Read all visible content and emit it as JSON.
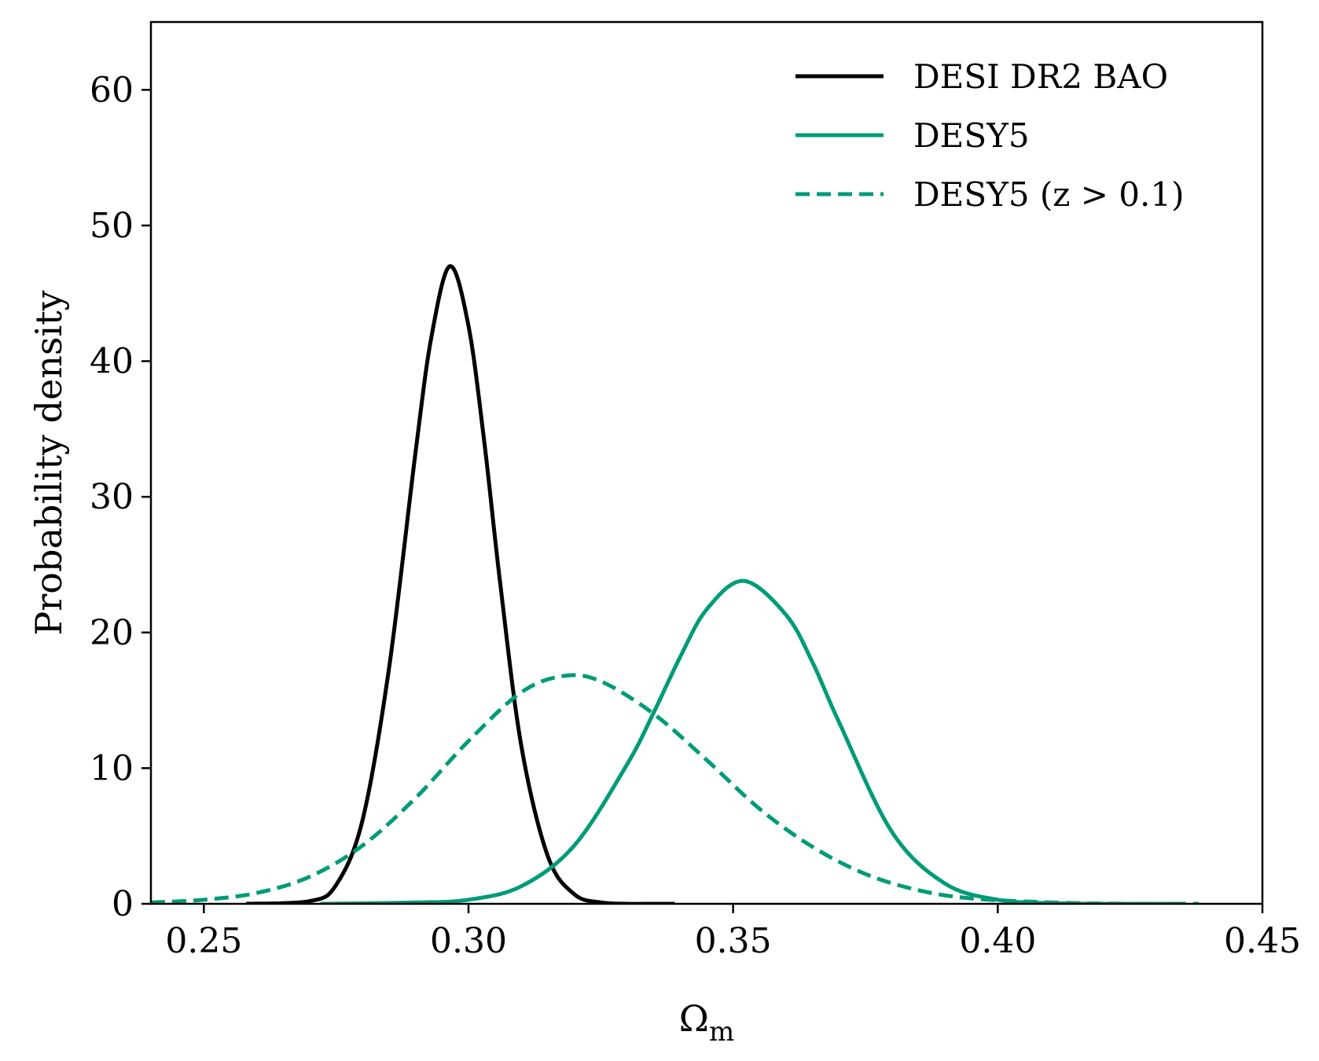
{
  "chart_data": {
    "type": "line",
    "title": "",
    "xlabel": "Ωm",
    "xlabel_main": "Ω",
    "xlabel_sub": "m",
    "ylabel": "Probability density",
    "xlim": [
      0.24,
      0.45
    ],
    "ylim": [
      0,
      65
    ],
    "xticks": [
      0.25,
      0.3,
      0.35,
      0.4,
      0.45
    ],
    "xtick_labels": [
      "0.25",
      "0.30",
      "0.35",
      "0.40",
      "0.45"
    ],
    "yticks": [
      0,
      10,
      20,
      30,
      40,
      50,
      60
    ],
    "ytick_labels": [
      "0",
      "10",
      "20",
      "30",
      "40",
      "50",
      "60"
    ],
    "grid": false,
    "legend_position": "top-right",
    "series": [
      {
        "name": "DESI DR2 BAO",
        "color": "#000000",
        "style": "solid",
        "x": [
          0.258,
          0.27,
          0.275,
          0.28,
          0.285,
          0.29,
          0.293,
          0.2965,
          0.3,
          0.303,
          0.306,
          0.31,
          0.315,
          0.32,
          0.325,
          0.33,
          0.335,
          0.339
        ],
        "y": [
          0.0,
          0.2,
          1.4,
          6.2,
          17.4,
          33.3,
          41.8,
          47.0,
          42.6,
          34.0,
          23.6,
          11.6,
          3.5,
          0.7,
          0.1,
          0.0,
          0.0,
          0.0
        ]
      },
      {
        "name": "DESY5",
        "color": "#009B77",
        "style": "solid",
        "x": [
          0.272,
          0.29,
          0.3,
          0.31,
          0.32,
          0.33,
          0.335,
          0.34,
          0.345,
          0.352,
          0.36,
          0.365,
          0.37,
          0.38,
          0.39,
          0.4,
          0.41,
          0.42,
          0.435
        ],
        "y": [
          0.0,
          0.1,
          0.3,
          1.3,
          4.3,
          10.3,
          14.1,
          18.2,
          21.7,
          23.8,
          21.3,
          17.8,
          13.4,
          5.3,
          1.5,
          0.3,
          0.05,
          0.0,
          0.0
        ]
      },
      {
        "name": "DESY5 (z > 0.1)",
        "color": "#009B77",
        "style": "dashed",
        "x": [
          0.24,
          0.25,
          0.26,
          0.27,
          0.28,
          0.29,
          0.3,
          0.31,
          0.318,
          0.325,
          0.335,
          0.345,
          0.355,
          0.365,
          0.375,
          0.385,
          0.395,
          0.41,
          0.425,
          0.438
        ],
        "y": [
          0.1,
          0.3,
          0.8,
          2.0,
          4.3,
          7.8,
          12.0,
          15.6,
          16.8,
          16.4,
          14.0,
          10.6,
          7.0,
          4.2,
          2.2,
          1.0,
          0.4,
          0.1,
          0.0,
          0.0
        ]
      }
    ]
  }
}
